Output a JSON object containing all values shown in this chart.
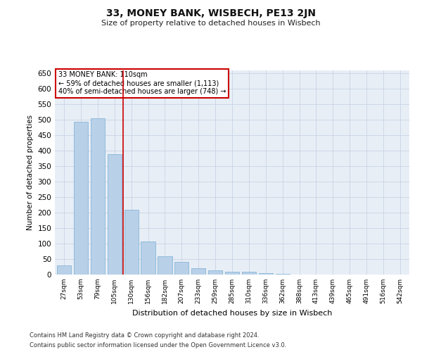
{
  "title": "33, MONEY BANK, WISBECH, PE13 2JN",
  "subtitle": "Size of property relative to detached houses in Wisbech",
  "xlabel": "Distribution of detached houses by size in Wisbech",
  "ylabel": "Number of detached properties",
  "footer_line1": "Contains HM Land Registry data © Crown copyright and database right 2024.",
  "footer_line2": "Contains public sector information licensed under the Open Government Licence v3.0.",
  "categories": [
    "27sqm",
    "53sqm",
    "79sqm",
    "105sqm",
    "130sqm",
    "156sqm",
    "182sqm",
    "207sqm",
    "233sqm",
    "259sqm",
    "285sqm",
    "310sqm",
    "336sqm",
    "362sqm",
    "388sqm",
    "413sqm",
    "439sqm",
    "465sqm",
    "491sqm",
    "516sqm",
    "542sqm"
  ],
  "values": [
    30,
    495,
    505,
    390,
    210,
    106,
    60,
    40,
    20,
    13,
    10,
    8,
    5,
    2,
    1,
    0.5,
    0,
    0,
    0.5,
    0,
    0.5
  ],
  "bar_color": "#b8d0e8",
  "bar_edge_color": "#7aafd4",
  "background_color": "#e8eef6",
  "grid_color": "#c8d4e4",
  "annotation_line1": "33 MONEY BANK: 110sqm",
  "annotation_line2": "← 59% of detached houses are smaller (1,113)",
  "annotation_line3": "40% of semi-detached houses are larger (748) →",
  "annotation_box_color": "#ffffff",
  "annotation_box_edge": "#cc0000",
  "red_line_color": "#cc0000",
  "ylim": [
    0,
    660
  ],
  "yticks": [
    0,
    50,
    100,
    150,
    200,
    250,
    300,
    350,
    400,
    450,
    500,
    550,
    600,
    650
  ]
}
